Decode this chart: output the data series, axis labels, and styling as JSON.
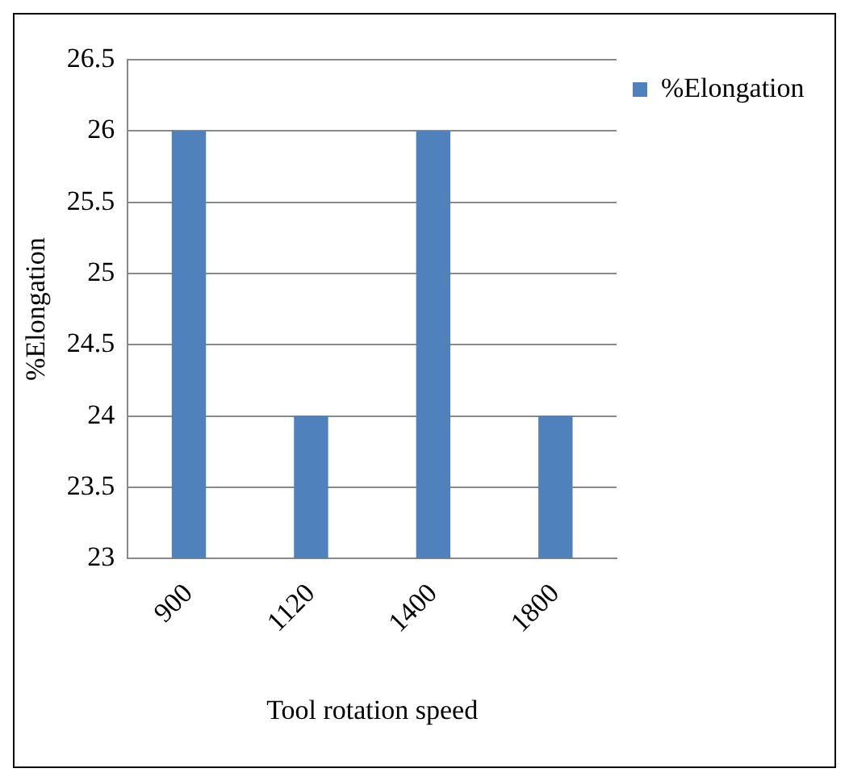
{
  "chart_data": {
    "type": "bar",
    "xlabel": "Tool rotation speed",
    "ylabel": "%Elongation",
    "categories": [
      "900",
      "1120",
      "1400",
      "1800"
    ],
    "series": [
      {
        "name": "%Elongation",
        "color": "#4f81bd",
        "values": [
          26,
          24,
          26,
          24
        ]
      }
    ],
    "ylim": [
      23,
      26.5
    ],
    "yticks": [
      23,
      23.5,
      24,
      24.5,
      25,
      25.5,
      26,
      26.5
    ],
    "grid": "y",
    "legend": "top right"
  }
}
